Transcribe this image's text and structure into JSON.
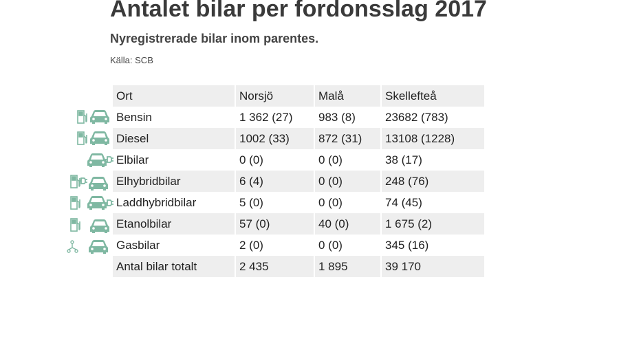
{
  "header": {
    "title": "Antalet bilar per fordonsslag 2017",
    "subtitle": "Nyregistrerade bilar inom parentes.",
    "source": "Källa: SCB"
  },
  "table": {
    "columns": [
      "Ort",
      "Norsjö",
      "Malå",
      "Skellefteå"
    ],
    "rows": [
      [
        "Bensin",
        "1 362 (27)",
        "983 (8)",
        "23682 (783)"
      ],
      [
        "Diesel",
        "1002 (33)",
        "872 (31)",
        "13108 (1228)"
      ],
      [
        "Elbilar",
        "0 (0)",
        "0 (0)",
        "38 (17)"
      ],
      [
        "Elhybridbilar",
        "6 (4)",
        "0 (0)",
        "248 (76)"
      ],
      [
        "Laddhybridbilar",
        "5 (0)",
        "0 (0)",
        "74 (45)"
      ],
      [
        "Etanolbilar",
        "57 (0)",
        "40 (0)",
        "1 675 (2)"
      ],
      [
        "Gasbilar",
        "2 (0)",
        "0 (0)",
        "345 (16)"
      ],
      [
        "Antal bilar totalt",
        "2 435",
        "1 895",
        "39 170"
      ]
    ]
  }
}
